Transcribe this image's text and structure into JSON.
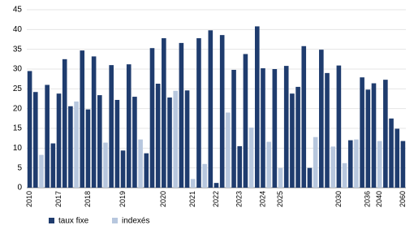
{
  "chart_data": {
    "type": "bar",
    "categories": [
      "2010",
      null,
      null,
      null,
      null,
      "2017",
      null,
      null,
      null,
      null,
      "2018",
      null,
      null,
      null,
      null,
      null,
      "2019",
      null,
      null,
      null,
      null,
      null,
      null,
      "2020",
      null,
      null,
      null,
      null,
      "2021",
      null,
      null,
      null,
      "2022",
      null,
      null,
      null,
      "2023",
      null,
      null,
      null,
      "2024",
      null,
      null,
      "2025",
      null,
      null,
      null,
      null,
      null,
      null,
      null,
      null,
      null,
      "2030",
      null,
      null,
      null,
      null,
      "2036",
      null,
      "2040",
      null,
      null,
      null,
      "2060"
    ],
    "series": [
      {
        "name": "taux fixe",
        "color": "#1f3c6e",
        "values": [
          29.5,
          24.2,
          null,
          26,
          11.2,
          23.8,
          32.5,
          20.6,
          null,
          34.7,
          19.8,
          33.2,
          23.4,
          null,
          31,
          22.2,
          9.4,
          31.2,
          23,
          null,
          8.7,
          35.3,
          26.3,
          37.8,
          22.8,
          null,
          36.6,
          24.6,
          null,
          37.8,
          null,
          39.8,
          1.2,
          38.6,
          null,
          29.8,
          10.5,
          33.8,
          null,
          40.8,
          30.2,
          null,
          30,
          null,
          30.8,
          23.8,
          25.5,
          35.8,
          5,
          null,
          34.9,
          29,
          null,
          30.9,
          null,
          12,
          null,
          27.9,
          24.8,
          26.4,
          null,
          27.3,
          17.5,
          14.9,
          11.8
        ]
      },
      {
        "name": "indexés",
        "color": "#b7c7de",
        "values": [
          null,
          null,
          8.3,
          null,
          null,
          null,
          null,
          null,
          21.8,
          null,
          null,
          null,
          null,
          11.4,
          null,
          null,
          null,
          null,
          null,
          12.2,
          null,
          null,
          null,
          null,
          null,
          24.5,
          null,
          null,
          2.2,
          null,
          6,
          null,
          null,
          null,
          19,
          null,
          null,
          null,
          15.2,
          null,
          null,
          11.6,
          null,
          5,
          null,
          null,
          null,
          null,
          null,
          12.8,
          null,
          null,
          10.4,
          null,
          6.2,
          null,
          12.2,
          null,
          null,
          null,
          11.8,
          null,
          null,
          null,
          null
        ]
      }
    ],
    "ylim": [
      0,
      45
    ],
    "yticks": [
      0,
      5,
      10,
      15,
      20,
      25,
      30,
      35,
      40,
      45
    ],
    "grid": true
  }
}
